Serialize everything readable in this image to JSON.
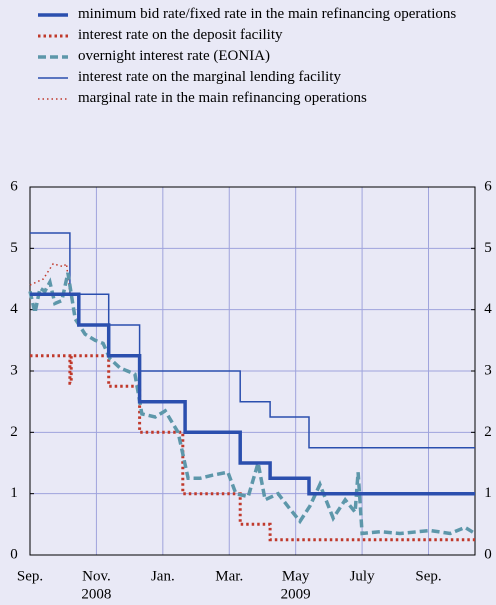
{
  "chart_data": {
    "type": "line",
    "series": [
      {
        "name": "minimum bid rate/fixed rate in the main refinancing operations",
        "color": "#2b4fae",
        "style": "solid",
        "width": 3.5,
        "x": [
          0,
          1.47,
          1.47,
          2.37,
          2.37,
          3.3,
          3.3,
          4.67,
          4.67,
          6.33,
          6.33,
          7.23,
          7.23,
          8.4,
          8.4,
          13.4
        ],
        "values": [
          4.25,
          4.25,
          3.75,
          3.75,
          3.25,
          3.25,
          2.5,
          2.5,
          2.0,
          2.0,
          1.5,
          1.5,
          1.25,
          1.25,
          1.0,
          1.0
        ]
      },
      {
        "name": "interest rate on the deposit facility",
        "color": "#c0392b",
        "style": "dotted",
        "width": 3,
        "x": [
          0,
          1.2,
          1.2,
          1.24,
          1.24,
          2.37,
          2.37,
          3.3,
          3.3,
          4.6,
          4.6,
          6.33,
          6.33,
          7.23,
          7.23,
          13.4
        ],
        "values": [
          3.25,
          3.25,
          2.8,
          2.8,
          3.25,
          3.25,
          2.75,
          2.75,
          2.0,
          2.0,
          1.0,
          1.0,
          0.5,
          0.5,
          0.25,
          0.25
        ]
      },
      {
        "name": "overnight interest rate (EONIA)",
        "color": "#5d97aa",
        "style": "dashed",
        "width": 3.5,
        "x": [
          0,
          0.15,
          0.3,
          0.45,
          0.6,
          0.75,
          0.96,
          1.14,
          1.36,
          1.66,
          1.96,
          2.2,
          2.41,
          2.71,
          3.16,
          3.37,
          3.77,
          4.07,
          4.46,
          4.76,
          5.12,
          5.48,
          5.96,
          6.2,
          6.57,
          6.87,
          7.08,
          7.47,
          7.83,
          8.13,
          8.43,
          8.73,
          9.13,
          9.49,
          9.79,
          9.88,
          10.0,
          10.54,
          11.14,
          12.05,
          12.65,
          13.1,
          13.4
        ],
        "values": [
          4.3,
          3.95,
          4.35,
          4.3,
          4.45,
          4.1,
          4.15,
          4.6,
          3.85,
          3.6,
          3.5,
          3.45,
          3.2,
          3.05,
          2.95,
          2.3,
          2.25,
          2.35,
          2.0,
          1.25,
          1.25,
          1.3,
          1.35,
          1.0,
          0.95,
          1.5,
          0.9,
          1.0,
          0.75,
          0.55,
          0.8,
          1.15,
          0.6,
          0.9,
          0.7,
          1.35,
          0.35,
          0.38,
          0.35,
          0.4,
          0.35,
          0.45,
          0.35
        ]
      },
      {
        "name": "interest rate on the marginal lending facility",
        "color": "#2b4fae",
        "style": "solid",
        "width": 1.5,
        "x": [
          0,
          1.2,
          1.2,
          2.37,
          2.37,
          3.3,
          3.3,
          6.33,
          6.33,
          7.23,
          7.23,
          8.4,
          8.4,
          13.4
        ],
        "values": [
          5.25,
          5.25,
          4.25,
          4.25,
          3.75,
          3.75,
          3.0,
          3.0,
          2.5,
          2.5,
          2.25,
          2.25,
          1.75,
          1.75
        ]
      },
      {
        "name": "marginal rate in the main refinancing operations",
        "color": "#c0392b",
        "style": "dotted",
        "width": 1.5,
        "x": [
          0,
          0.4,
          0.7,
          1.0,
          1.1,
          1.2
        ],
        "values": [
          4.4,
          4.5,
          4.75,
          4.7,
          4.75,
          4.25
        ]
      }
    ],
    "xlim": [
      0,
      13.4
    ],
    "xticks": [
      {
        "value": 0,
        "label": "Sep."
      },
      {
        "value": 2,
        "label": "Nov."
      },
      {
        "value": 4,
        "label": "Jan."
      },
      {
        "value": 6,
        "label": "Mar."
      },
      {
        "value": 8,
        "label": "May"
      },
      {
        "value": 10,
        "label": "July"
      },
      {
        "value": 12,
        "label": "Sep."
      }
    ],
    "annotations": [
      {
        "text": "2008",
        "x": 2
      },
      {
        "text": "2009",
        "x": 8
      }
    ],
    "ylim": [
      0,
      6
    ],
    "yticks": [
      0,
      1,
      2,
      3,
      4,
      5,
      6
    ],
    "y2lim": [
      0,
      6
    ],
    "y2ticks": [
      0,
      1,
      2,
      3,
      4,
      5,
      6
    ],
    "grid": true,
    "grid_color": "#9fa3dc"
  }
}
